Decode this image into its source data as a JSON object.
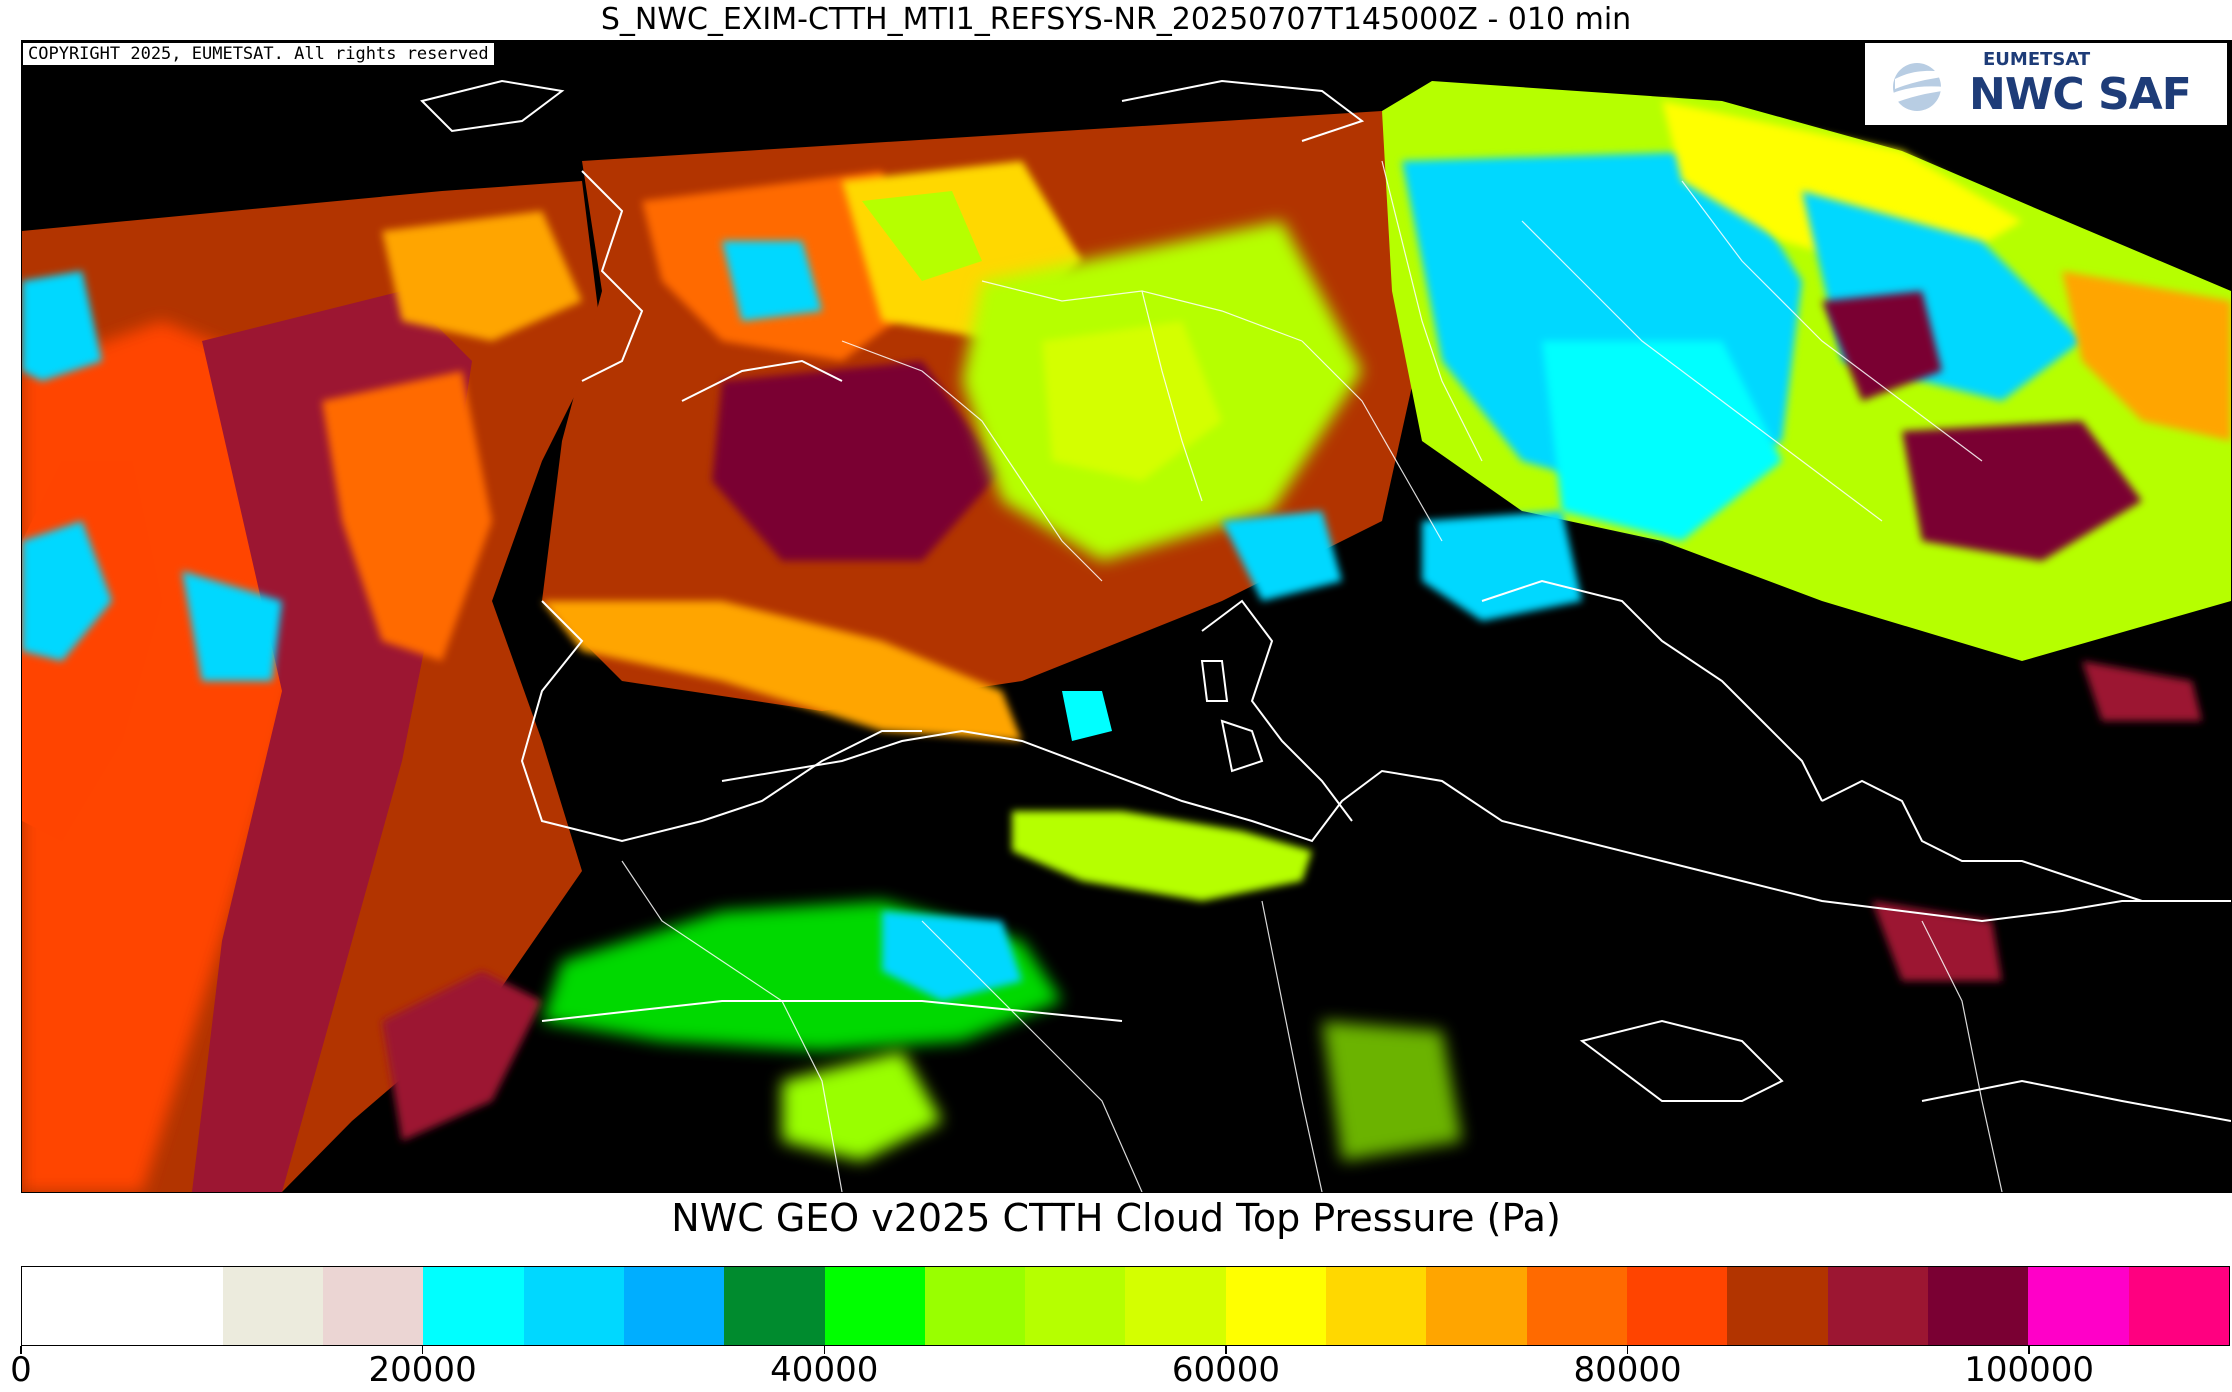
{
  "title": "S_NWC_EXIM-CTTH_MTI1_REFSYS-NR_20250707T145000Z - 010 min",
  "copyright": "COPYRIGHT 2025, EUMETSAT. All rights reserved",
  "logo": {
    "org": "EUMETSAT",
    "name": "NWC SAF"
  },
  "colorbar": {
    "title": "NWC GEO v2025 CTTH Cloud Top Pressure (Pa)",
    "min": 0,
    "max": 110000,
    "ticks": [
      "0",
      "20000",
      "40000",
      "60000",
      "80000",
      "100000"
    ],
    "tick_values": [
      0,
      20000,
      40000,
      60000,
      80000,
      100000
    ],
    "bins": [
      {
        "from": 0,
        "to": 10000,
        "color": "#ffffff"
      },
      {
        "from": 10000,
        "to": 15000,
        "color": "#ecebdd"
      },
      {
        "from": 15000,
        "to": 20000,
        "color": "#ebd5d3"
      },
      {
        "from": 20000,
        "to": 25000,
        "color": "#00ffff"
      },
      {
        "from": 25000,
        "to": 30000,
        "color": "#00d8ff"
      },
      {
        "from": 30000,
        "to": 35000,
        "color": "#00aeff"
      },
      {
        "from": 35000,
        "to": 40000,
        "color": "#008b2e"
      },
      {
        "from": 40000,
        "to": 45000,
        "color": "#00ff00"
      },
      {
        "from": 45000,
        "to": 50000,
        "color": "#99ff00"
      },
      {
        "from": 50000,
        "to": 55000,
        "color": "#b6ff00"
      },
      {
        "from": 55000,
        "to": 60000,
        "color": "#d4ff00"
      },
      {
        "from": 60000,
        "to": 65000,
        "color": "#ffff00"
      },
      {
        "from": 65000,
        "to": 70000,
        "color": "#ffd800"
      },
      {
        "from": 70000,
        "to": 75000,
        "color": "#ffa500"
      },
      {
        "from": 75000,
        "to": 80000,
        "color": "#ff6a00"
      },
      {
        "from": 80000,
        "to": 85000,
        "color": "#ff4400"
      },
      {
        "from": 85000,
        "to": 90000,
        "color": "#b23400"
      },
      {
        "from": 90000,
        "to": 95000,
        "color": "#9c1632"
      },
      {
        "from": 95000,
        "to": 100000,
        "color": "#7a0033"
      },
      {
        "from": 100000,
        "to": 105000,
        "color": "#ff00c8"
      },
      {
        "from": 105000,
        "to": 110000,
        "color": "#ff0080"
      }
    ]
  },
  "map": {
    "background_color": "#000000",
    "coastline_color": "#ffffff"
  }
}
